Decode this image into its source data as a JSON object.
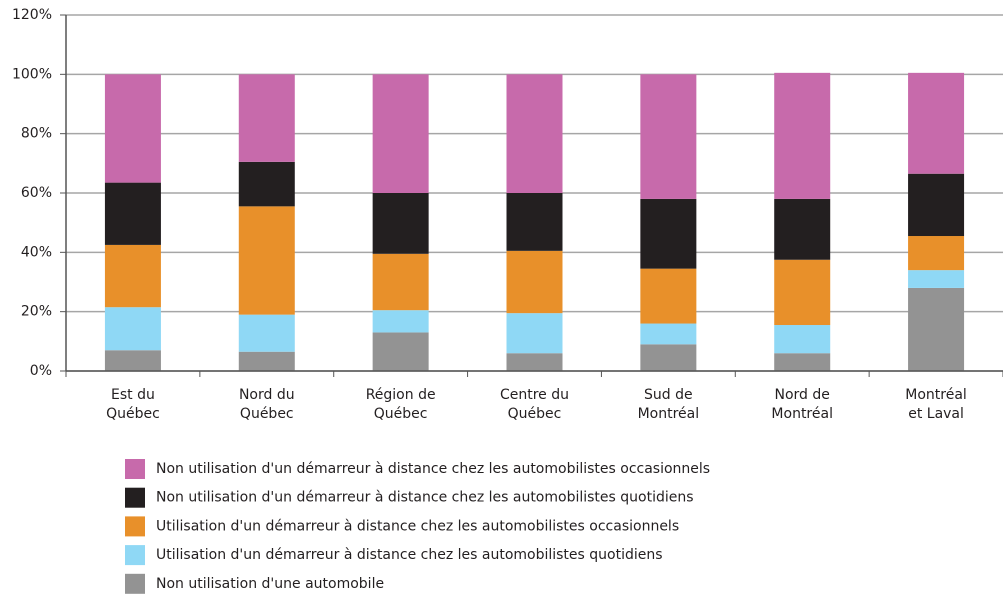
{
  "chart_data": {
    "type": "stacked-bar",
    "categories": [
      "Est du\nQuébec",
      "Nord du\nQuébec",
      "Région de\nQuébec",
      "Centre du\nQuébec",
      "Sud de\nMontréal",
      "Nord de\nMontréal",
      "Montréal\net Laval"
    ],
    "series": [
      {
        "name": "Non utilisation d'un démarreur à distance chez les automobilistes occasionnels",
        "color": "#c76aab",
        "values": [
          36.5,
          29.5,
          40,
          40,
          42,
          42.5,
          34
        ]
      },
      {
        "name": "Non utilisation d'un démarreur à distance chez les automobilistes quotidiens",
        "color": "#231f20",
        "values": [
          21,
          15,
          20.5,
          19.5,
          23.5,
          20.5,
          21
        ]
      },
      {
        "name": "Utilisation d'un démarreur à distance chez les automobilistes occasionnels",
        "color": "#e8902a",
        "values": [
          21,
          36.5,
          19,
          21,
          18.5,
          22,
          11.5
        ]
      },
      {
        "name": "Utilisation d'un démarreur à distance chez les automobilistes quotidiens",
        "color": "#8fd8f5",
        "values": [
          14.5,
          12.5,
          7.5,
          13.5,
          7,
          9.5,
          6
        ]
      },
      {
        "name": "Non utilisation d'une automobile",
        "color": "#939393",
        "values": [
          7,
          6.5,
          13,
          6,
          9,
          6,
          28
        ]
      }
    ],
    "ylim": [
      0,
      120
    ],
    "yticks": [
      {
        "value": 0,
        "label": "0%"
      },
      {
        "value": 20,
        "label": "20%"
      },
      {
        "value": 40,
        "label": "40%"
      },
      {
        "value": 60,
        "label": "60%"
      },
      {
        "value": 80,
        "label": "80%"
      },
      {
        "value": 100,
        "label": "100%"
      },
      {
        "value": 120,
        "label": "120%"
      }
    ],
    "grid": true
  }
}
